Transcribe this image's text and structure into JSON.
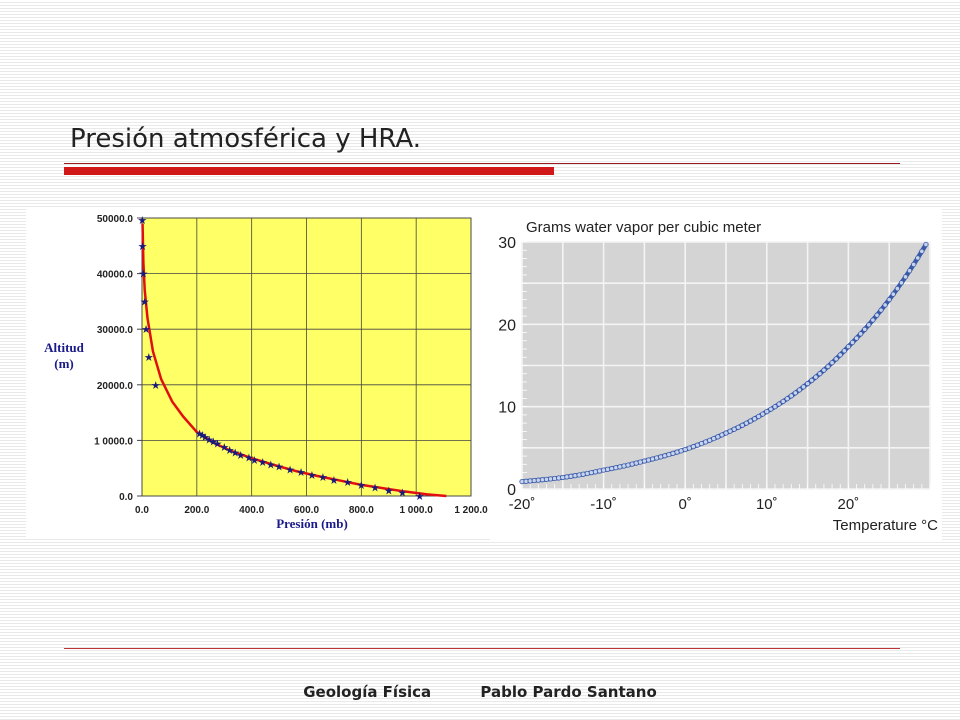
{
  "slide": {
    "title": "Presión atmosférica y HRA.",
    "footer_left": "Geología Física",
    "footer_right": "Pablo Pardo Santano",
    "accent_color": "#d01818"
  },
  "chart_data": [
    {
      "type": "line",
      "title": "",
      "xlabel": "Presión (mb)",
      "ylabel_line1": "Altitud",
      "ylabel_line2": "(m)",
      "xlim": [
        0,
        1200
      ],
      "ylim": [
        0,
        50000
      ],
      "x_ticks": [
        0,
        200,
        400,
        600,
        800,
        1000,
        1200
      ],
      "x_tick_labels": [
        "0.0",
        "200.0",
        "400.0",
        "600.0",
        "800.0",
        "1 000.0",
        "1 200.0"
      ],
      "y_ticks": [
        0,
        10000,
        20000,
        30000,
        40000,
        50000
      ],
      "y_tick_labels": [
        "0.0",
        "1 0000.0",
        "20000.0",
        "30000.0",
        "40000.0",
        "50000.0"
      ],
      "grid": true,
      "background_color": "#ffff66",
      "series": [
        {
          "style": "curve",
          "color": "#e01010",
          "x": [
            2,
            5,
            10,
            20,
            40,
            70,
            110,
            150,
            200,
            260,
            320,
            400,
            480,
            560,
            640,
            720,
            800,
            880,
            960,
            1040,
            1110
          ],
          "y": [
            49000,
            42000,
            37000,
            32000,
            26000,
            21000,
            17000,
            14300,
            11500,
            9600,
            8200,
            6800,
            5600,
            4500,
            3600,
            2800,
            2000,
            1400,
            800,
            300,
            0
          ]
        },
        {
          "style": "markers",
          "color": "#1a1a7a",
          "x": [
            1,
            2,
            5,
            10,
            15,
            25,
            50,
            210,
            220,
            230,
            245,
            260,
            275,
            300,
            320,
            340,
            360,
            390,
            410,
            440,
            470,
            500,
            540,
            580,
            620,
            660,
            700,
            750,
            800,
            850,
            900,
            950,
            1013
          ],
          "y": [
            49600,
            45000,
            40000,
            35000,
            30000,
            25000,
            20000,
            11200,
            11000,
            10600,
            10200,
            9800,
            9400,
            8800,
            8300,
            7800,
            7400,
            6900,
            6500,
            6100,
            5700,
            5300,
            4800,
            4300,
            3800,
            3400,
            2900,
            2500,
            2000,
            1500,
            1000,
            600,
            0
          ]
        }
      ]
    },
    {
      "type": "line",
      "title": "Grams water vapor per cubic meter",
      "xlabel": "Temperature °C",
      "ylabel": "",
      "xlim": [
        -20,
        30
      ],
      "ylim": [
        0,
        30
      ],
      "x_ticks": [
        -20,
        -10,
        0,
        10,
        20
      ],
      "x_tick_labels": [
        "-20˚",
        "-10˚",
        "0˚",
        "10˚",
        "20˚"
      ],
      "y_ticks": [
        0,
        10,
        20,
        30
      ],
      "y_tick_labels": [
        "0",
        "10",
        "20",
        "30"
      ],
      "grid": true,
      "background_color": "#d4d4d4",
      "series": [
        {
          "style": "beaded-line",
          "color": "#3a5aa8",
          "x": [
            -20,
            -15,
            -10,
            -5,
            0,
            5,
            10,
            15,
            20,
            25,
            29.5
          ],
          "y": [
            0.9,
            1.4,
            2.3,
            3.4,
            4.8,
            6.8,
            9.4,
            12.8,
            17.3,
            23.0,
            29.7
          ]
        }
      ]
    }
  ]
}
